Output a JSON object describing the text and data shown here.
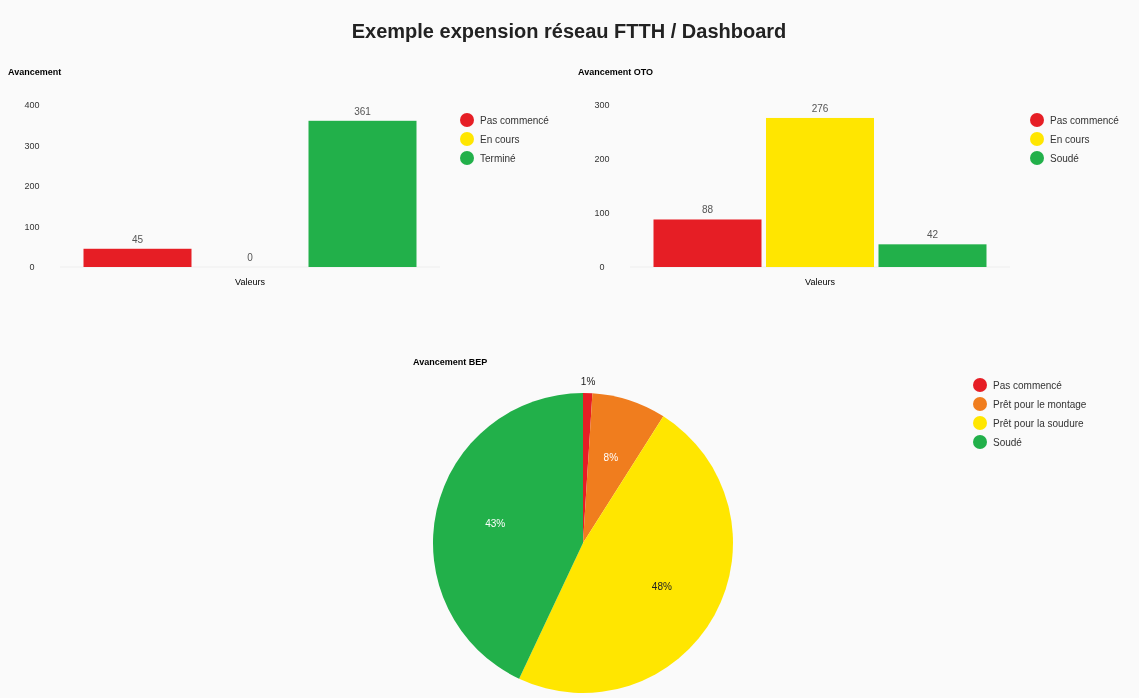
{
  "chart_data": [
    {
      "type": "bar",
      "title": "Avancement",
      "annotations": [
        "Exemple expension réseau FTTH / Dashboard"
      ],
      "categories": [
        "Valeurs"
      ],
      "series": [
        {
          "name": "Pas commencé",
          "color": "#e61e25",
          "values": [
            45
          ]
        },
        {
          "name": "En cours",
          "color": "#ffe600",
          "values": [
            0
          ]
        },
        {
          "name": "Terminé",
          "color": "#22b04a",
          "values": [
            361
          ]
        }
      ],
      "ylim": [
        0,
        400
      ],
      "yticks": [
        0,
        100,
        200,
        300,
        400
      ],
      "data_labels": true,
      "legend": "right"
    },
    {
      "type": "bar",
      "title": "Avancement OTO",
      "categories": [
        "Valeurs"
      ],
      "series": [
        {
          "name": "Pas commencé",
          "color": "#e61e25",
          "values": [
            88
          ]
        },
        {
          "name": "En cours",
          "color": "#ffe600",
          "values": [
            276
          ]
        },
        {
          "name": "Soudé",
          "color": "#22b04a",
          "values": [
            42
          ]
        }
      ],
      "ylim": [
        0,
        300
      ],
      "yticks": [
        0,
        100,
        200,
        300
      ],
      "data_labels": true,
      "legend": "right"
    },
    {
      "type": "pie",
      "title": "Avancement BEP",
      "categories": [
        "Pas commencé",
        "Prêt pour le montage",
        "Prêt pour la soudure",
        "Soudé"
      ],
      "values": [
        1,
        8,
        48,
        43
      ],
      "value_labels": [
        "1%",
        "8%",
        "48%",
        "43%"
      ],
      "colors": [
        "#e61e25",
        "#f07d1e",
        "#ffe600",
        "#22b04a"
      ],
      "legend": "right"
    }
  ]
}
